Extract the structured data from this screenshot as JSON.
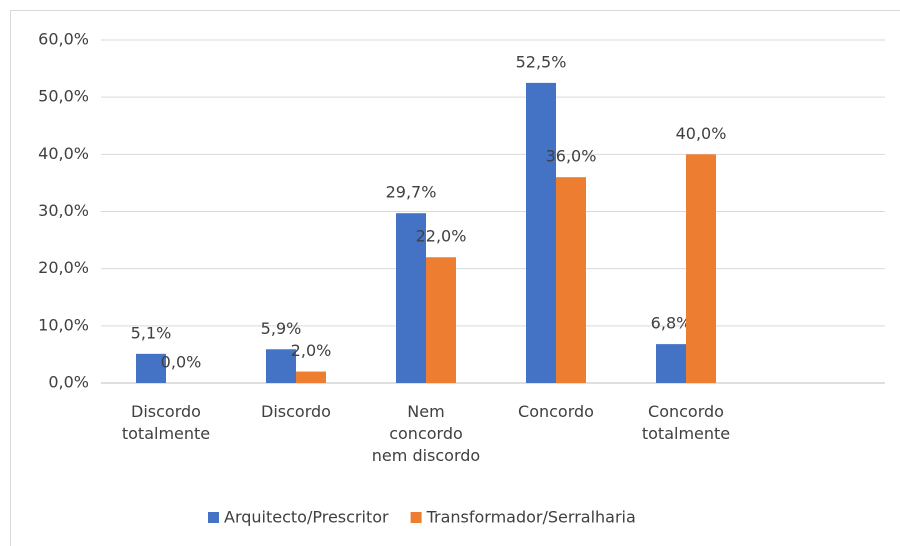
{
  "chart_data": {
    "type": "bar",
    "categories": [
      "Discordo totalmente",
      "Discordo",
      "Nem concordo nem discordo",
      "Concordo",
      "Concordo totalmente",
      null
    ],
    "series": [
      {
        "name": "Arquitecto/Prescritor",
        "color": "#4472c4",
        "values": [
          5.1,
          5.9,
          29.7,
          52.5,
          6.8,
          null
        ],
        "value_labels": [
          "5,1%",
          "5,9%",
          "29,7%",
          "52,5%",
          "6,8%",
          null
        ]
      },
      {
        "name": "Transformador/Serralharia",
        "color": "#ed7d31",
        "values": [
          0.0,
          2.0,
          22.0,
          36.0,
          40.0,
          null
        ],
        "value_labels": [
          "0,0%",
          "2,0%",
          "22,0%",
          "36,0%",
          "40,0%",
          null
        ]
      }
    ],
    "ylim": [
      0,
      60
    ],
    "yticks": [
      {
        "value": 0,
        "label": "0,0%"
      },
      {
        "value": 10,
        "label": "10,0%"
      },
      {
        "value": 20,
        "label": "20,0%"
      },
      {
        "value": 30,
        "label": "30,0%"
      },
      {
        "value": 40,
        "label": "40,0%"
      },
      {
        "value": 50,
        "label": "50,0%"
      },
      {
        "value": 60,
        "label": "60,0%"
      }
    ],
    "grid": true,
    "legend": "bottom"
  }
}
